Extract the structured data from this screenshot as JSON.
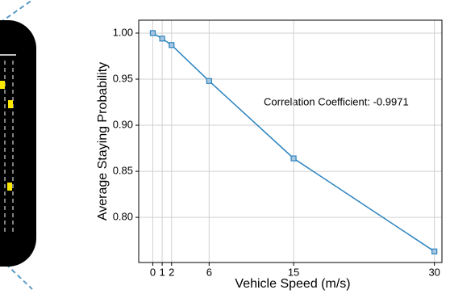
{
  "chart_data": {
    "type": "line",
    "xlabel": "Vehicle Speed (m/s)",
    "ylabel": "Average Staying Probability",
    "annotation": "Correlation Coefficient: -0.9971",
    "x": [
      0,
      1,
      2,
      6,
      15,
      30
    ],
    "series": [
      {
        "color": "#2b83c0",
        "values": [
          1.0,
          0.994,
          0.987,
          0.948,
          0.864,
          0.763
        ]
      }
    ],
    "xlim": [
      -1.5,
      30.8
    ],
    "ylim": [
      0.751,
      1.014
    ],
    "xticks": [
      0,
      1,
      2,
      6,
      15,
      30
    ],
    "yticks": [
      {
        "value": 0.8,
        "label": "0.80"
      },
      {
        "value": 0.85,
        "label": "0.85"
      },
      {
        "value": 0.9,
        "label": "0.90"
      },
      {
        "value": 0.95,
        "label": "0.95"
      },
      {
        "value": 1.0,
        "label": "1.00"
      }
    ],
    "grid": true
  }
}
